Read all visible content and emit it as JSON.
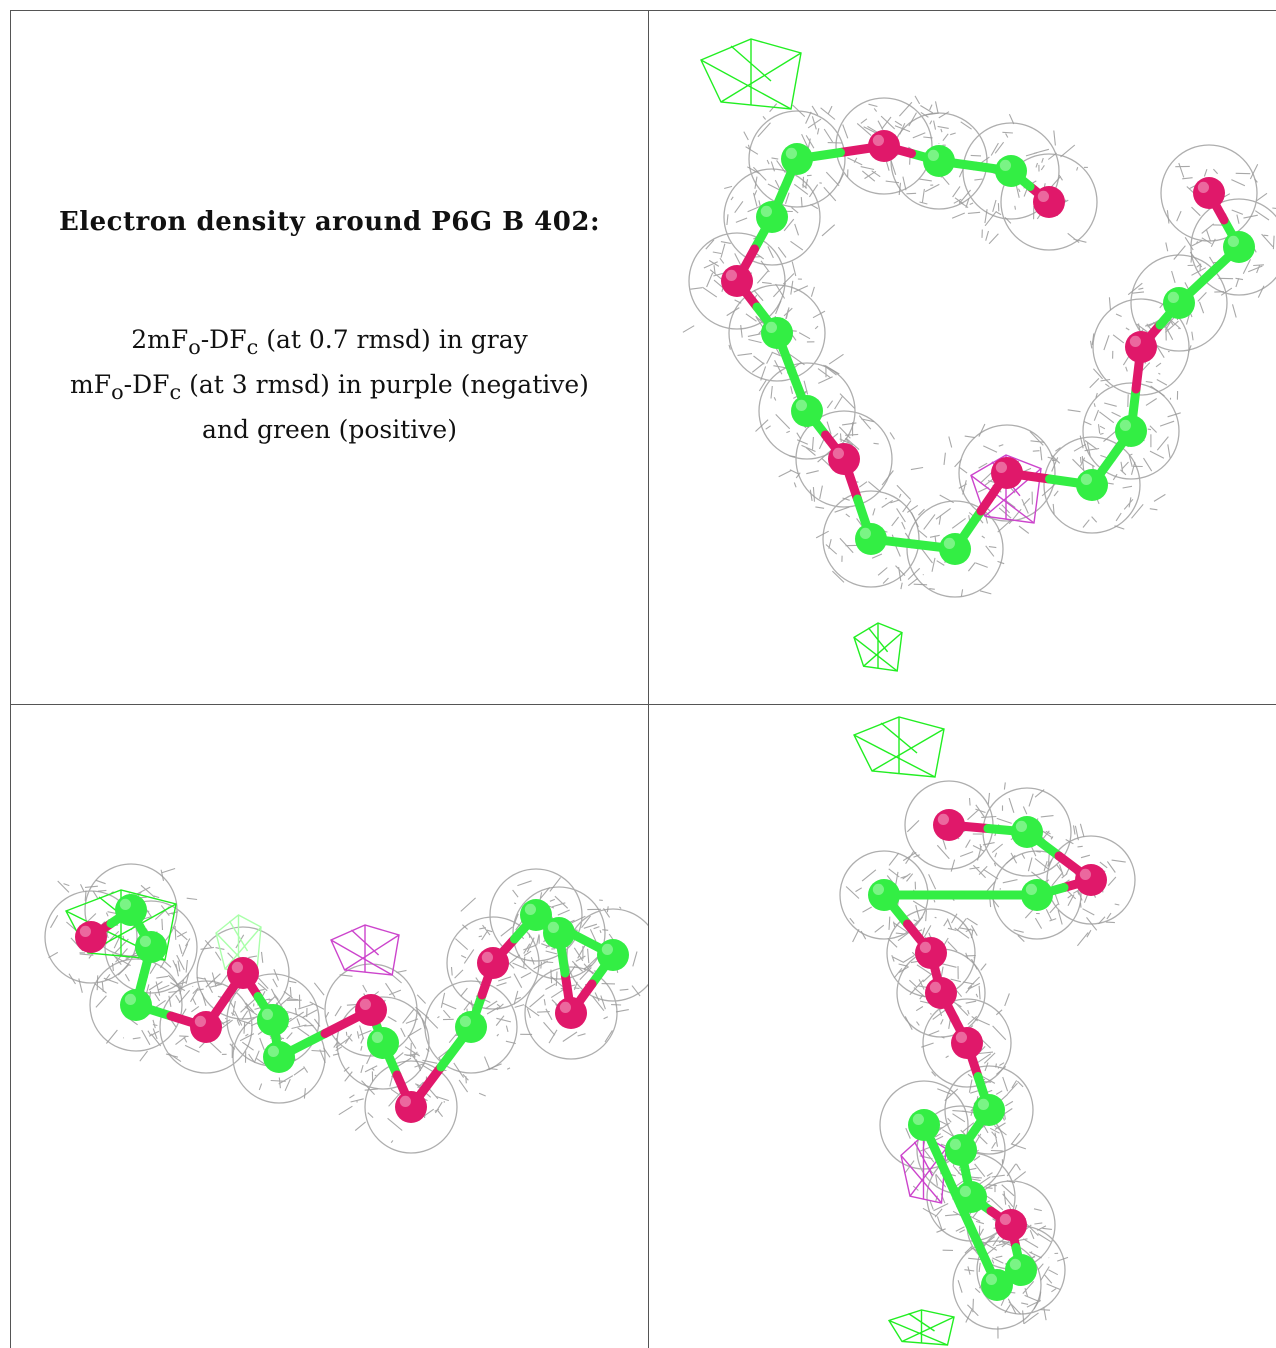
{
  "caption": {
    "title": "Electron density around P6G B 402:",
    "lines": [
      {
        "a": "2mF",
        "a_sub": "o",
        "b": "-DF",
        "b_sub": "c",
        "rest": " (at 0.7 rmsd) in gray"
      },
      {
        "a": "mF",
        "a_sub": "o",
        "b": "-DF",
        "b_sub": "c",
        "rest": " (at 3 rmsd) in purple (negative)"
      },
      {
        "plain": "and green (positive)"
      }
    ]
  },
  "colors": {
    "mesh_2fofc": "#9a9a9a",
    "positive_difference": "#22ee22",
    "negative_difference": "#cc44cc",
    "carbon": "#33ee44",
    "oxygen": "#e0186a",
    "border": "#555555"
  },
  "panels": [
    {
      "name": "view-top-right",
      "molecule": "P6G"
    },
    {
      "name": "view-bottom-left",
      "molecule": "P6G"
    },
    {
      "name": "view-bottom-right",
      "molecule": "P6G"
    }
  ]
}
